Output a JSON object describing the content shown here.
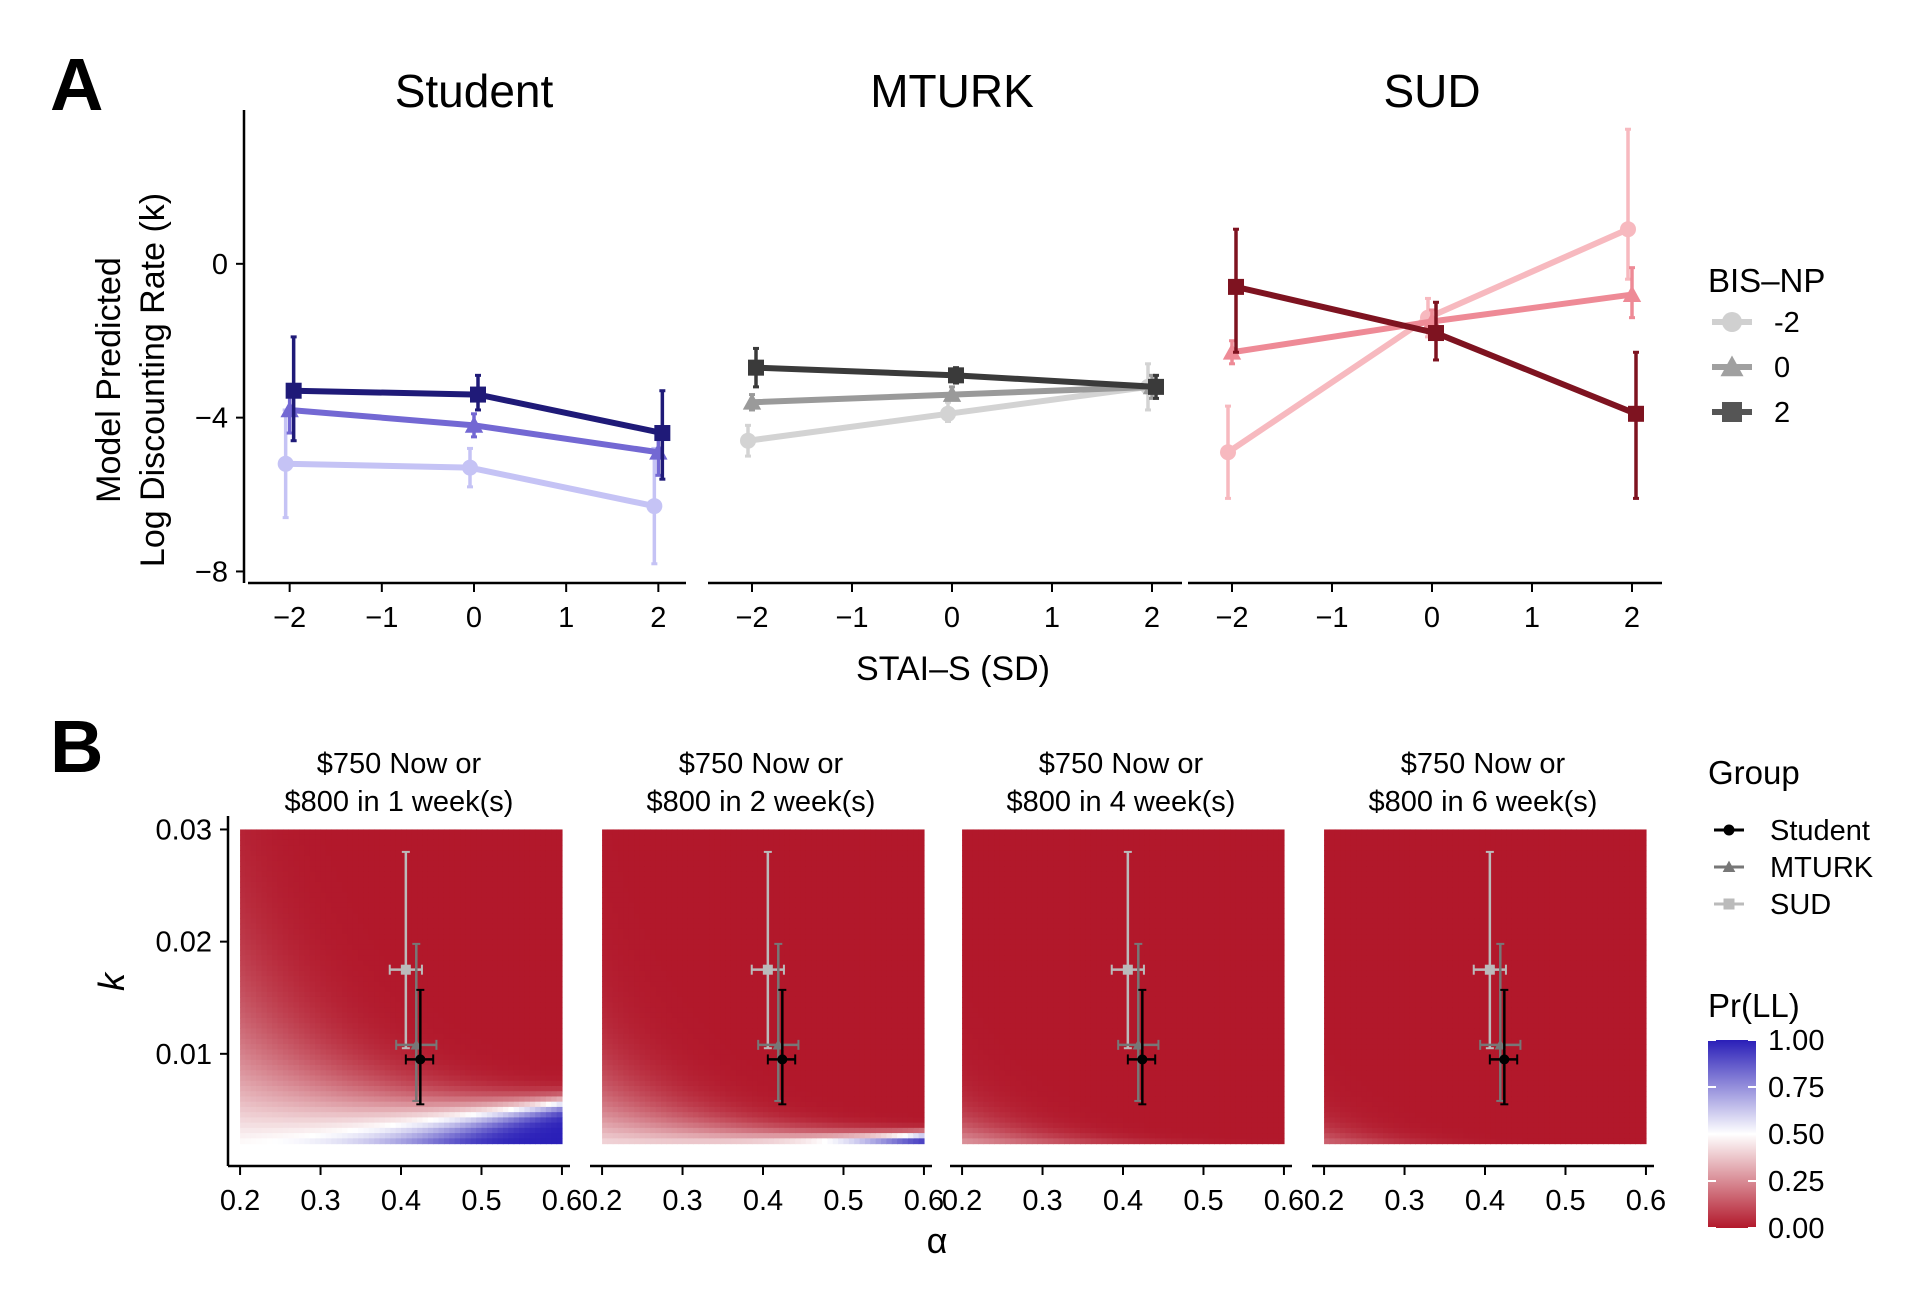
{
  "panel_a": {
    "letter": "A",
    "facets": [
      "Student",
      "MTURK",
      "SUD"
    ],
    "y_title_line1": "Model Predicted",
    "y_title_line2": "Log Discounting Rate (k)",
    "x_title": "STAI–S (SD)",
    "y_ticks": [
      {
        "value": 0,
        "label": "0"
      },
      {
        "value": -4,
        "label": "−4"
      },
      {
        "value": -8,
        "label": "−8"
      }
    ],
    "x_ticks": [
      {
        "value": -2,
        "label": "−2"
      },
      {
        "value": -1,
        "label": "−1"
      },
      {
        "value": 0,
        "label": "0"
      },
      {
        "value": 1,
        "label": "1"
      },
      {
        "value": 2,
        "label": "2"
      }
    ],
    "legend": {
      "title": "BIS–NP",
      "items": [
        {
          "label": "-2",
          "shape": "circle",
          "color": "#d0d0d0"
        },
        {
          "label": "0",
          "shape": "triangle",
          "color": "#a0a0a0"
        },
        {
          "label": "2",
          "shape": "square",
          "color": "#555555"
        }
      ]
    }
  },
  "panel_b": {
    "letter": "B",
    "facet_title_line1": "$750 Now or",
    "facet_title_line2": [
      "$800 in 1 week(s)",
      "$800 in 2 week(s)",
      "$800 in 4 week(s)",
      "$800 in 6 week(s)"
    ],
    "x_title": "α",
    "y_title": "k",
    "x_ticks": [
      {
        "value": 0.2,
        "label": "0.2"
      },
      {
        "value": 0.3,
        "label": "0.3"
      },
      {
        "value": 0.4,
        "label": "0.4"
      },
      {
        "value": 0.5,
        "label": "0.5"
      },
      {
        "value": 0.6,
        "label": "0.6"
      }
    ],
    "y_ticks": [
      {
        "value": 0.01,
        "label": "0.01"
      },
      {
        "value": 0.02,
        "label": "0.02"
      },
      {
        "value": 0.03,
        "label": "0.03"
      }
    ],
    "group_legend": {
      "title": "Group",
      "items": [
        {
          "label": "Student",
          "shape": "circle",
          "color": "#000000"
        },
        {
          "label": "MTURK",
          "shape": "triangle",
          "color": "#777777"
        },
        {
          "label": "SUD",
          "shape": "square",
          "color": "#bbbbbb"
        }
      ]
    },
    "colorbar": {
      "title": "Pr(LL)",
      "ticks": [
        {
          "value": 1.0,
          "label": "1.00"
        },
        {
          "value": 0.75,
          "label": "0.75"
        },
        {
          "value": 0.5,
          "label": "0.50"
        },
        {
          "value": 0.25,
          "label": "0.25"
        },
        {
          "value": 0.0,
          "label": "0.00"
        }
      ],
      "low_color": "#b2182b",
      "mid_color": "#ffffff",
      "high_color": "#2a1fb8"
    }
  },
  "chart_data": [
    {
      "type": "line",
      "panel": "A",
      "xlabel": "STAI–S (SD)",
      "ylabel": "Model Predicted Log Discounting Rate (k)",
      "xlim": [
        -2.3,
        2.3
      ],
      "ylim": [
        -8.3,
        4.0
      ],
      "grid": false,
      "legend_title": "BIS–NP",
      "legend_position": "right",
      "x": [
        -2,
        0,
        2
      ],
      "facets": [
        {
          "name": "Student",
          "series": [
            {
              "name": "-2",
              "shape": "circle",
              "color": "#c5c3f5",
              "values": [
                -5.2,
                -5.3,
                -6.3
              ],
              "lower": [
                -6.6,
                -5.8,
                -7.8
              ],
              "upper": [
                -3.8,
                -4.8,
                -4.8
              ]
            },
            {
              "name": "0",
              "shape": "triangle",
              "color": "#7368d3",
              "values": [
                -3.8,
                -4.2,
                -4.9
              ],
              "lower": [
                -4.4,
                -4.5,
                -5.5
              ],
              "upper": [
                -3.2,
                -3.9,
                -4.3
              ]
            },
            {
              "name": "2",
              "shape": "square",
              "color": "#1f1a78",
              "values": [
                -3.3,
                -3.4,
                -4.4
              ],
              "lower": [
                -4.6,
                -3.8,
                -5.6
              ],
              "upper": [
                -1.9,
                -2.9,
                -3.3
              ]
            }
          ]
        },
        {
          "name": "MTURK",
          "series": [
            {
              "name": "-2",
              "shape": "circle",
              "color": "#d3d3d3",
              "values": [
                -4.6,
                -3.9,
                -3.2
              ],
              "lower": [
                -5.0,
                -4.1,
                -3.8
              ],
              "upper": [
                -4.2,
                -3.6,
                -2.6
              ]
            },
            {
              "name": "0",
              "shape": "triangle",
              "color": "#9a9a9a",
              "values": [
                -3.6,
                -3.4,
                -3.2
              ],
              "lower": [
                -3.8,
                -3.5,
                -3.5
              ],
              "upper": [
                -3.4,
                -3.2,
                -2.9
              ]
            },
            {
              "name": "2",
              "shape": "square",
              "color": "#3a3a3a",
              "values": [
                -2.7,
                -2.9,
                -3.2
              ],
              "lower": [
                -3.2,
                -3.1,
                -3.5
              ],
              "upper": [
                -2.2,
                -2.7,
                -2.9
              ]
            }
          ]
        },
        {
          "name": "SUD",
          "series": [
            {
              "name": "-2",
              "shape": "circle",
              "color": "#f7b9bf",
              "values": [
                -4.9,
                -1.4,
                0.9
              ],
              "lower": [
                -6.1,
                -1.9,
                -0.4
              ],
              "upper": [
                -3.7,
                -0.9,
                3.5
              ]
            },
            {
              "name": "0",
              "shape": "triangle",
              "color": "#ee8a96",
              "values": [
                -2.3,
                -1.5,
                -0.8
              ],
              "lower": [
                -2.6,
                -1.8,
                -1.4
              ],
              "upper": [
                -2.0,
                -1.2,
                -0.1
              ]
            },
            {
              "name": "2",
              "shape": "square",
              "color": "#7e1320",
              "values": [
                -0.6,
                -1.8,
                -3.9
              ],
              "lower": [
                -2.3,
                -2.5,
                -6.1
              ],
              "upper": [
                0.9,
                -1.0,
                -2.3
              ]
            }
          ]
        }
      ]
    },
    {
      "type": "heatmap",
      "panel": "B",
      "xlabel": "α",
      "ylabel": "k",
      "xlim": [
        0.185,
        0.61
      ],
      "ylim": [
        0.0,
        0.0312
      ],
      "x_range": [
        0.2,
        0.6
      ],
      "y_range": [
        0.002,
        0.03
      ],
      "value_name": "Pr(LL)",
      "grid": false,
      "facets": [
        {
          "title": "$750 Now or $800 in 1 week(s)",
          "weeks": 1
        },
        {
          "title": "$750 Now or $800 in 2 week(s)",
          "weeks": 2
        },
        {
          "title": "$750 Now or $800 in 4 week(s)",
          "weeks": 4
        },
        {
          "title": "$750 Now or $800 in 6 week(s)",
          "weeks": 6
        }
      ],
      "group_estimates": [
        {
          "name": "Student",
          "shape": "circle",
          "color": "#000000",
          "alpha": 0.424,
          "alpha_lower": 0.406,
          "alpha_upper": 0.44,
          "k": 0.0095,
          "k_lower": 0.0055,
          "k_upper": 0.0157
        },
        {
          "name": "MTURK",
          "shape": "triangle",
          "color": "#777777",
          "alpha": 0.419,
          "alpha_lower": 0.394,
          "alpha_upper": 0.444,
          "k": 0.0108,
          "k_lower": 0.0058,
          "k_upper": 0.0198
        },
        {
          "name": "SUD",
          "shape": "square",
          "color": "#bbbbbb",
          "alpha": 0.406,
          "alpha_lower": 0.386,
          "alpha_upper": 0.426,
          "k": 0.0175,
          "k_lower": 0.0105,
          "k_upper": 0.028
        }
      ],
      "legend_position": "right"
    }
  ]
}
